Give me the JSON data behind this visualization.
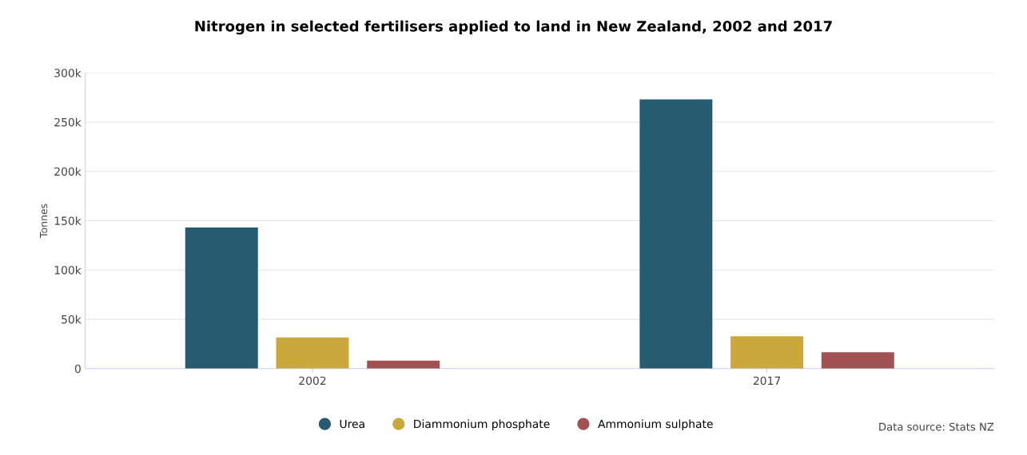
{
  "chart_data": {
    "type": "bar",
    "title": "Nitrogen in selected fertilisers applied to land in New Zealand, 2002 and 2017",
    "ylabel": "Tonnes",
    "categories": [
      "2002",
      "2017"
    ],
    "series": [
      {
        "name": "Urea",
        "color": "#265b70",
        "values": [
          143000,
          273000
        ]
      },
      {
        "name": "Diammonium phosphate",
        "color": "#cca83c",
        "values": [
          31500,
          32700
        ]
      },
      {
        "name": "Ammonium sulphate",
        "color": "#a05352",
        "values": [
          8000,
          16500
        ]
      }
    ],
    "ylim": [
      0,
      300000
    ],
    "yticks": [
      {
        "value": 0,
        "label": "0"
      },
      {
        "value": 50000,
        "label": "50k"
      },
      {
        "value": 100000,
        "label": "100k"
      },
      {
        "value": 150000,
        "label": "150k"
      },
      {
        "value": 200000,
        "label": "200k"
      },
      {
        "value": 250000,
        "label": "250k"
      },
      {
        "value": 300000,
        "label": "300k"
      }
    ],
    "grid": "y",
    "legend": "bottom",
    "annotations": [
      "Data source: Stats NZ"
    ]
  }
}
